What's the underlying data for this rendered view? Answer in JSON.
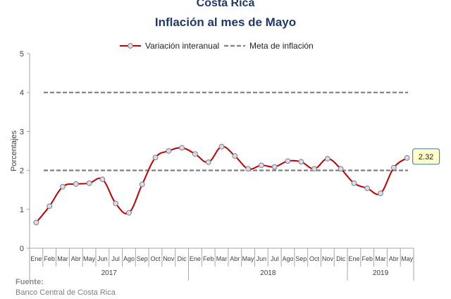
{
  "titles": {
    "line1": "Costa Rica",
    "line2": "Inflación al mes de Mayo"
  },
  "source": {
    "label": "Fuente:",
    "text": "Banco Central de Costa Rica"
  },
  "colors": {
    "series": "#c00000",
    "marker_fill": "#d9dcef",
    "marker_stroke": "#7f7f7f",
    "target": "#808080",
    "callout_fill": "#ffffcc",
    "callout_stroke": "#4a86c5",
    "title": "#1f3a6b"
  },
  "chart_data": {
    "type": "line",
    "title": "Inflación al mes de Mayo",
    "ylabel": "Porcentajes",
    "xlabel": "",
    "ylim": [
      0,
      5
    ],
    "yticks": [
      "0",
      "1",
      "2",
      "3",
      "4",
      "5"
    ],
    "grid": false,
    "legend_position": "top-center",
    "categories": [
      "Ene",
      "Feb",
      "Mar",
      "Abr",
      "May",
      "Jun",
      "Jul",
      "Ago",
      "Sep",
      "Oct",
      "Nov",
      "Dic",
      "Ene",
      "Feb",
      "Mar",
      "Abr",
      "May",
      "Jun",
      "Jul",
      "Ago",
      "Sep",
      "Oct",
      "Nov",
      "Dic",
      "Ene",
      "Feb",
      "Mar",
      "Abr",
      "May"
    ],
    "year_groups": [
      {
        "label": "2017",
        "count": 12
      },
      {
        "label": "2018",
        "count": 12
      },
      {
        "label": "2019",
        "count": 5
      }
    ],
    "series": [
      {
        "name": "Variación interanual",
        "values": [
          0.66,
          1.08,
          1.58,
          1.65,
          1.67,
          1.77,
          1.15,
          0.91,
          1.64,
          2.33,
          2.5,
          2.58,
          2.42,
          2.21,
          2.61,
          2.37,
          2.04,
          2.13,
          2.09,
          2.24,
          2.22,
          2.04,
          2.3,
          2.04,
          1.67,
          1.54,
          1.41,
          2.07,
          2.32
        ]
      },
      {
        "name": "Meta de inflación",
        "upper": 4,
        "lower": 2
      }
    ],
    "annotations": [
      {
        "text": "2.32",
        "category_index": 28
      }
    ]
  }
}
